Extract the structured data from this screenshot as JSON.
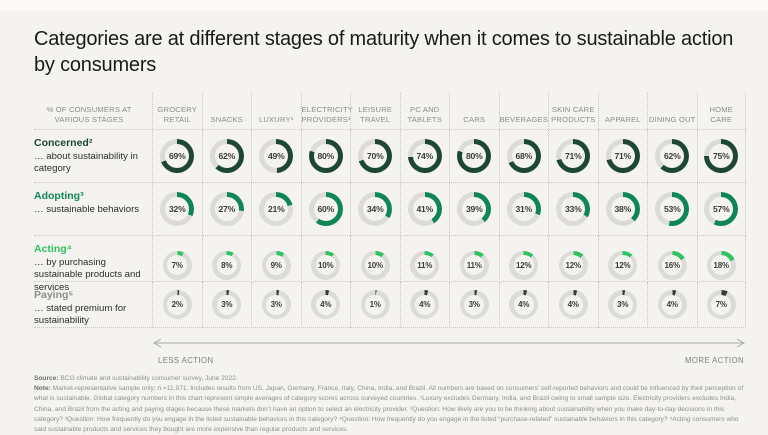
{
  "page": {
    "title": "Categories are at different stages of maturity when it comes to sustainable action by consumers"
  },
  "matrix": {
    "corner_header": "% of consumers at various stages",
    "stages": [
      {
        "name": "Concerned²",
        "desc": "… about sustainability in category",
        "color": "#1d4731",
        "name_color": "#1d4731",
        "size": "large"
      },
      {
        "name": "Adopting³",
        "desc": "… sustainable behaviors",
        "color": "#118655",
        "name_color": "#118655",
        "size": "large"
      },
      {
        "name": "Acting⁴",
        "desc": "… by purchasing sustainable products and services",
        "color": "#2fc162",
        "name_color": "#2fc162",
        "size": "small"
      },
      {
        "name": "Paying⁵",
        "desc": "… stated premium for sustainability",
        "color": "#3b3b36",
        "name_color": "#8d8d87",
        "size": "small"
      }
    ]
  },
  "axis": {
    "left": "Less action",
    "right": "More action"
  },
  "footer": {
    "source_label": "Source:",
    "source_text": "BCG climate and sustainability consumer survey, June 2022.",
    "note_label": "Note:",
    "note_text": "Market-representative sample only; n =11,971. Includes results from US, Japan, Germany, France, Italy, China, India, and Brazil. All numbers are based on consumers’ self-reported behaviors and could be influenced by their perception of what is sustainable. Global category numbers in this chart represent simple averages of category scores across surveyed countries. ¹Luxury excludes Germany, India, and Brazil owing to small sample size. Electricity providers excludes India, China, and Brazil from the acting and paying stages because these markets don’t have an option to select an electricity provider. ²Question: How likely are you to be thinking about sustainability when you make day-to-day decisions in this category? ³Question: How frequently do you engage in the listed sustainable behaviors in this category? ⁴Question: How frequently do you engage in the listed “purchase-related” sustainable behaviors in this category? ⁵Acting consumers who said sustainable products and services they bought are more expensive than regular products and services."
  },
  "chart_data": {
    "type": "table",
    "visual": "donut_matrix",
    "unit": "%",
    "title": "Categories are at different stages of maturity when it comes to sustainable action by consumers",
    "categories": [
      "Grocery retail",
      "Snacks",
      "Luxury¹",
      "Electricity providers¹",
      "Leisure travel",
      "PC and tablets",
      "Cars",
      "Beverages",
      "Skin care products",
      "Apparel",
      "Dining out",
      "Home care"
    ],
    "series": [
      {
        "name": "Concerned",
        "values": [
          69,
          62,
          49,
          80,
          70,
          74,
          80,
          68,
          71,
          71,
          62,
          75
        ]
      },
      {
        "name": "Adopting",
        "values": [
          32,
          27,
          21,
          60,
          34,
          41,
          39,
          31,
          33,
          38,
          53,
          57
        ]
      },
      {
        "name": "Acting",
        "values": [
          7,
          8,
          9,
          10,
          10,
          11,
          11,
          12,
          12,
          12,
          16,
          18
        ]
      },
      {
        "name": "Paying",
        "values": [
          2,
          3,
          3,
          4,
          1,
          4,
          3,
          4,
          4,
          3,
          4,
          7
        ]
      }
    ],
    "axis_annotation": {
      "left": "Less action",
      "right": "More action"
    },
    "colors": {
      "concerned": "#1d4731",
      "adopting": "#118655",
      "acting": "#2fc162",
      "paying": "#3b3b36",
      "track": "#dcdbd6"
    }
  }
}
